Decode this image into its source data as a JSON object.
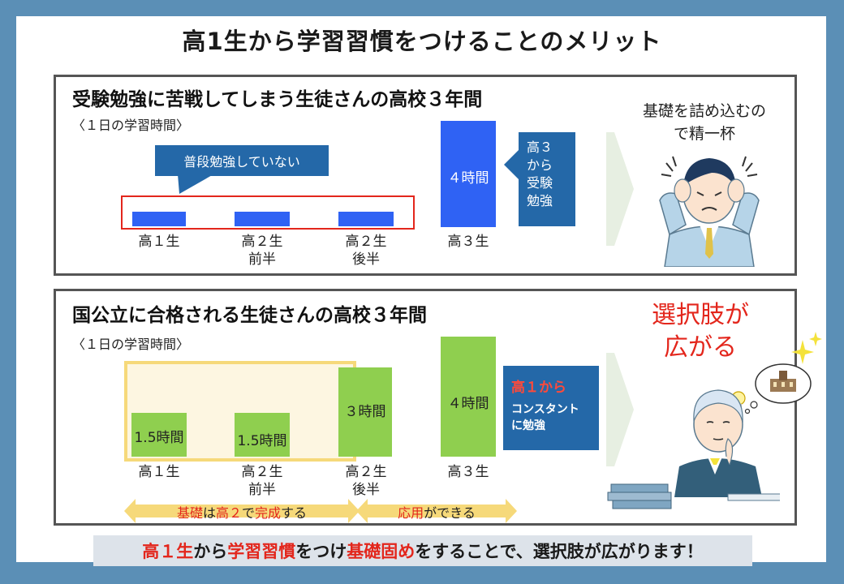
{
  "title": "高1生から学習習慣をつけることのメリット",
  "panel1": {
    "title": "受験勉強に苦戦してしまう生徒さんの高校３年間",
    "subtitle": "〈１日の学習時間〉",
    "callout": "普段勉強していない",
    "categories": [
      {
        "label1": "高１生",
        "label2": ""
      },
      {
        "label1": "高２生",
        "label2": "前半"
      },
      {
        "label1": "高２生",
        "label2": "後半"
      },
      {
        "label1": "高３生",
        "label2": ""
      }
    ],
    "bar4_label": "４時間",
    "side_box_lines": [
      "高３",
      "から",
      "受験",
      "勉強"
    ],
    "right_text_lines": [
      "基礎を詰め込むの",
      "で精一杯"
    ]
  },
  "panel2": {
    "title": "国公立に合格される生徒さんの高校３年間",
    "subtitle": "〈１日の学習時間〉",
    "bar_labels": [
      "1.5時間",
      "1.5時間",
      "３時間",
      "４時間"
    ],
    "categories": [
      {
        "label1": "高１生",
        "label2": ""
      },
      {
        "label1": "高２生",
        "label2": "前半"
      },
      {
        "label1": "高２生",
        "label2": "後半"
      },
      {
        "label1": "高３生",
        "label2": ""
      }
    ],
    "side_box_line1": "高１から",
    "side_box_line2": "コンスタント",
    "side_box_line3": "に勉強",
    "arrow1": {
      "p1": "基礎",
      "p2": "は",
      "p3": "高２",
      "p4": "で",
      "p5": "完成",
      "p6": "する"
    },
    "arrow2": {
      "p1": "応用",
      "p2": "ができる"
    },
    "right_text_lines": [
      "選択肢が",
      "広がる"
    ]
  },
  "caption": {
    "p1": "高１生",
    "p2": "から",
    "p3": "学習習慣",
    "p4": "をつけ",
    "p5": "基礎固め",
    "p6": "をすることで、選択肢が広がります！"
  },
  "colors": {
    "frame": "#5b8fb6",
    "bar_blue": "#2f62f4",
    "bar_green": "#8fcf4f",
    "callout_blue": "#2468a8",
    "highlight_red": "#e3261c",
    "yellow": "#f6d97a"
  },
  "icons": [
    "stressed-student-illustration",
    "thinking-student-illustration",
    "school-building-icon",
    "lightbulb-icon",
    "sparkle-icon",
    "books-icon"
  ]
}
